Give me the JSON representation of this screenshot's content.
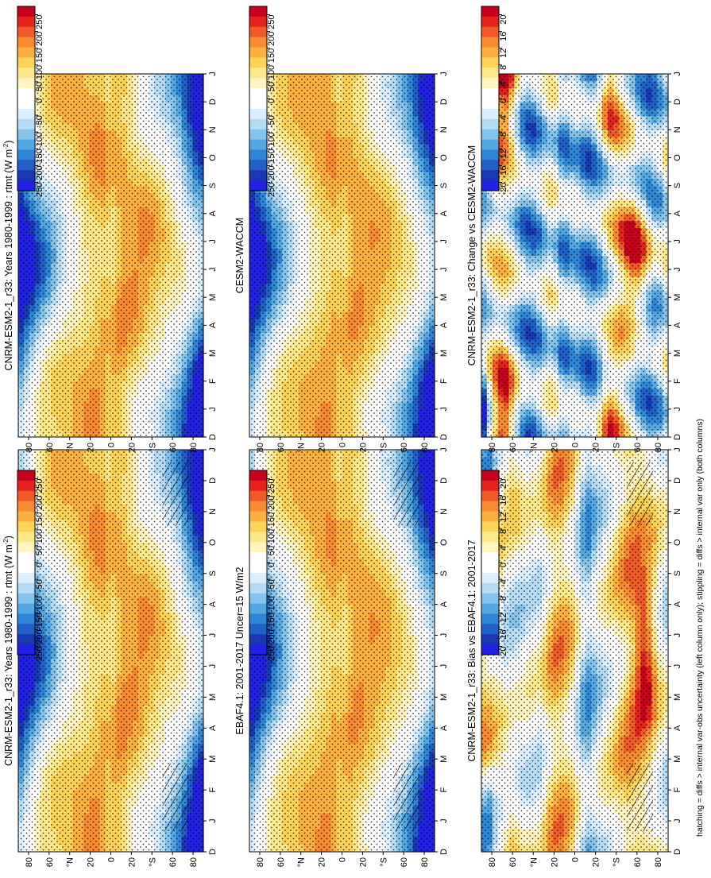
{
  "figure": {
    "caption": "hatching = diffs > internal var-obs uncertainty (left column only); stippling = diffs > internal var only (both columns)"
  },
  "colors": {
    "abs_palette": [
      "#c8001e",
      "#e4231e",
      "#f05a28",
      "#f88a32",
      "#fbb040",
      "#fdd35a",
      "#fee98a",
      "#fff5c0",
      "#ffffff",
      "#ffffff",
      "#dcefff",
      "#b4dcf5",
      "#84c4ec",
      "#55a8e1",
      "#2f86d6",
      "#2060c8",
      "#1838b4",
      "#2222e6"
    ],
    "diff_palette": [
      "#c8001e",
      "#e4231e",
      "#f05a28",
      "#f88a32",
      "#fbb040",
      "#fdd35a",
      "#fee98a",
      "#fff5c0",
      "#ffffff",
      "#ffffff",
      "#dcefff",
      "#b4dcf5",
      "#84c4ec",
      "#55a8e1",
      "#2f86d6",
      "#2060c8",
      "#1838b4",
      "#2222e6"
    ]
  },
  "chart_data": [
    {
      "id": "model",
      "type": "heatmap",
      "title": "CNRM-ESM2-1_r33: Years 1980-1999 : rtmt (W m",
      "title_sup": "-2",
      "title_close": ")",
      "x": [
        "D",
        "J",
        "F",
        "M",
        "A",
        "M",
        "J",
        "J",
        "A",
        "S",
        "O",
        "N",
        "D",
        "J"
      ],
      "y": [
        "80",
        "60",
        "°N",
        "20",
        "0",
        "20",
        "°S",
        "60",
        "80"
      ],
      "colorbar": [
        "250",
        "200",
        "150",
        "100",
        "50",
        "0",
        "-50",
        "-100",
        "-150",
        "-200",
        "-250"
      ],
      "kind": "abs",
      "hatch": true
    },
    {
      "id": "obs",
      "type": "heatmap",
      "title": "EBAF4.1: 2001-2017 Uncer=15 W/m2",
      "title_sup": "",
      "title_close": "",
      "x": [
        "D",
        "J",
        "F",
        "M",
        "A",
        "M",
        "J",
        "J",
        "A",
        "S",
        "O",
        "N",
        "D",
        "J"
      ],
      "y": [
        "80",
        "60",
        "°N",
        "20",
        "0",
        "20",
        "°S",
        "60",
        "80"
      ],
      "colorbar": [
        "250",
        "200",
        "150",
        "100",
        "50",
        "0",
        "-50",
        "-100",
        "-150",
        "-200",
        "-250"
      ],
      "kind": "abs",
      "hatch": true
    },
    {
      "id": "bias",
      "type": "heatmap",
      "title": "CNRM-ESM2-1_r33: Bias vs EBAF4.1: 2001-2017",
      "title_sup": "",
      "title_close": "",
      "x": [
        "D",
        "J",
        "F",
        "M",
        "A",
        "M",
        "J",
        "J",
        "A",
        "S",
        "O",
        "N",
        "D",
        "J"
      ],
      "y": [
        "80",
        "60",
        "°N",
        "20",
        "0",
        "20",
        "°S",
        "60",
        "80"
      ],
      "colorbar": [
        "20",
        "16",
        "12",
        "8",
        "4",
        "0",
        "-4",
        "-8",
        "-12",
        "-16",
        "-20"
      ],
      "kind": "bias",
      "hatch": true
    },
    {
      "id": "model2",
      "type": "heatmap",
      "title": "CNRM-ESM2-1_r33: Years 1980-1999 : rtmt (W m",
      "title_sup": "-2",
      "title_close": ")",
      "x": [
        "D",
        "J",
        "F",
        "M",
        "A",
        "M",
        "J",
        "J",
        "A",
        "S",
        "O",
        "N",
        "D",
        "J"
      ],
      "y": [
        "80",
        "60",
        "°N",
        "20",
        "0",
        "20",
        "°S",
        "60",
        "80"
      ],
      "colorbar": [
        "250",
        "200",
        "150",
        "100",
        "50",
        "0",
        "-50",
        "-100",
        "-150",
        "-200",
        "-250"
      ],
      "kind": "abs",
      "hatch": false
    },
    {
      "id": "ref",
      "type": "heatmap",
      "title": "CESM2-WACCM",
      "title_sup": "",
      "title_close": "",
      "x": [
        "D",
        "J",
        "F",
        "M",
        "A",
        "M",
        "J",
        "J",
        "A",
        "S",
        "O",
        "N",
        "D",
        "J"
      ],
      "y": [
        "80",
        "60",
        "°N",
        "20",
        "0",
        "20",
        "°S",
        "60",
        "80"
      ],
      "colorbar": [
        "250",
        "200",
        "150",
        "100",
        "50",
        "0",
        "-50",
        "-100",
        "-150",
        "-200",
        "-250"
      ],
      "kind": "abs",
      "hatch": false
    },
    {
      "id": "change",
      "type": "heatmap",
      "title": "CNRM-ESM2-1_r33: Change vs CESM2-WACCM",
      "title_sup": "",
      "title_close": "",
      "x": [
        "D",
        "J",
        "F",
        "M",
        "A",
        "M",
        "J",
        "J",
        "A",
        "S",
        "O",
        "N",
        "D",
        "J"
      ],
      "y": [
        "80",
        "60",
        "°N",
        "20",
        "0",
        "20",
        "°S",
        "60",
        "80"
      ],
      "colorbar": [
        "20",
        "16",
        "12",
        "8",
        "4",
        "0",
        "-4",
        "-8",
        "-12",
        "-16",
        "-20"
      ],
      "kind": "change",
      "hatch": false
    }
  ]
}
